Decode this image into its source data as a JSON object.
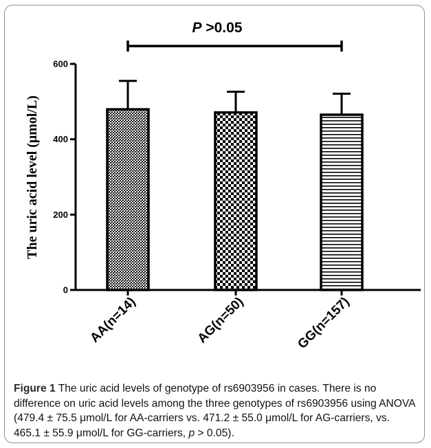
{
  "chart_data": {
    "type": "bar",
    "categories": [
      "AA(n=14)",
      "AG(n=50)",
      "GG(n=157)"
    ],
    "values": [
      479.4,
      471.2,
      465.1
    ],
    "errors": [
      75.5,
      55.0,
      55.9
    ],
    "patterns": [
      "dense-dots",
      "checker",
      "horizontal-lines"
    ],
    "title": "",
    "xlabel": "",
    "ylabel": "The uric acid level (μmol/L)",
    "ylim": [
      0,
      600
    ],
    "yticks": [
      0,
      200,
      400,
      600
    ],
    "grid": false,
    "significance": {
      "p_label": "P",
      "text": " >0.05",
      "from": 0,
      "to": 2
    }
  },
  "caption": {
    "label": "Figure 1",
    "text_1": " The uric acid levels of genotype of rs6903956 in cases. There is no difference on uric acid levels among the three genotypes of rs6903956 using ANOVA (479.4 ± 75.5 μmol/L for AA-carriers vs. 471.2 ± 55.0 μmol/L for AG-carriers, vs. 465.1 ± 55.9 μmol/L for GG-carriers, ",
    "p_italic": "p",
    "text_2": " > 0.05)."
  }
}
